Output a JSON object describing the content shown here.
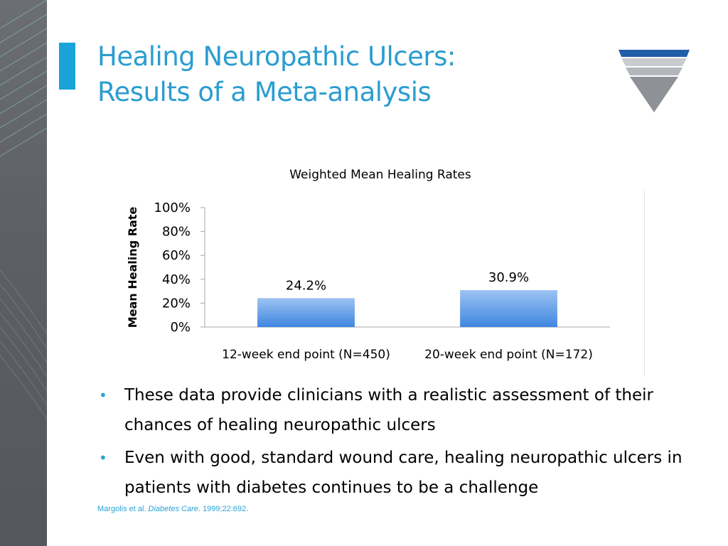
{
  "slide": {
    "title_line1": "Healing Neuropathic Ulcers:",
    "title_line2": "Results of a Meta-analysis",
    "bullets": [
      "These data provide clinicians with a realistic assessment of their chances of healing neuropathic ulcers",
      "Even with good, standard wound care, healing neuropathic ulcers in patients with diabetes continues to be a challenge"
    ],
    "citation": {
      "authors": "Margolis et al.",
      "journal": "Diabetes Care",
      "details": ". 1999;22:692."
    }
  },
  "chart_data": {
    "type": "bar",
    "title": "Weighted Mean Healing Rates",
    "xlabel": "",
    "ylabel": "Mean Healing Rate",
    "categories": [
      "12-week end point (N=450)",
      "20-week end point (N=172)"
    ],
    "values": [
      24.2,
      30.9
    ],
    "data_labels": [
      "24.2%",
      "30.9%"
    ],
    "ylim": [
      0,
      100
    ],
    "yticks": [
      0,
      20,
      40,
      60,
      80,
      100
    ],
    "ytick_labels": [
      "0%",
      "20%",
      "40%",
      "60%",
      "80%",
      "100%"
    ],
    "bar_color": "#4a8fe0",
    "grid": false,
    "legend": "none"
  },
  "colors": {
    "accent": "#2a9dd0",
    "strip": "#5d6065"
  }
}
